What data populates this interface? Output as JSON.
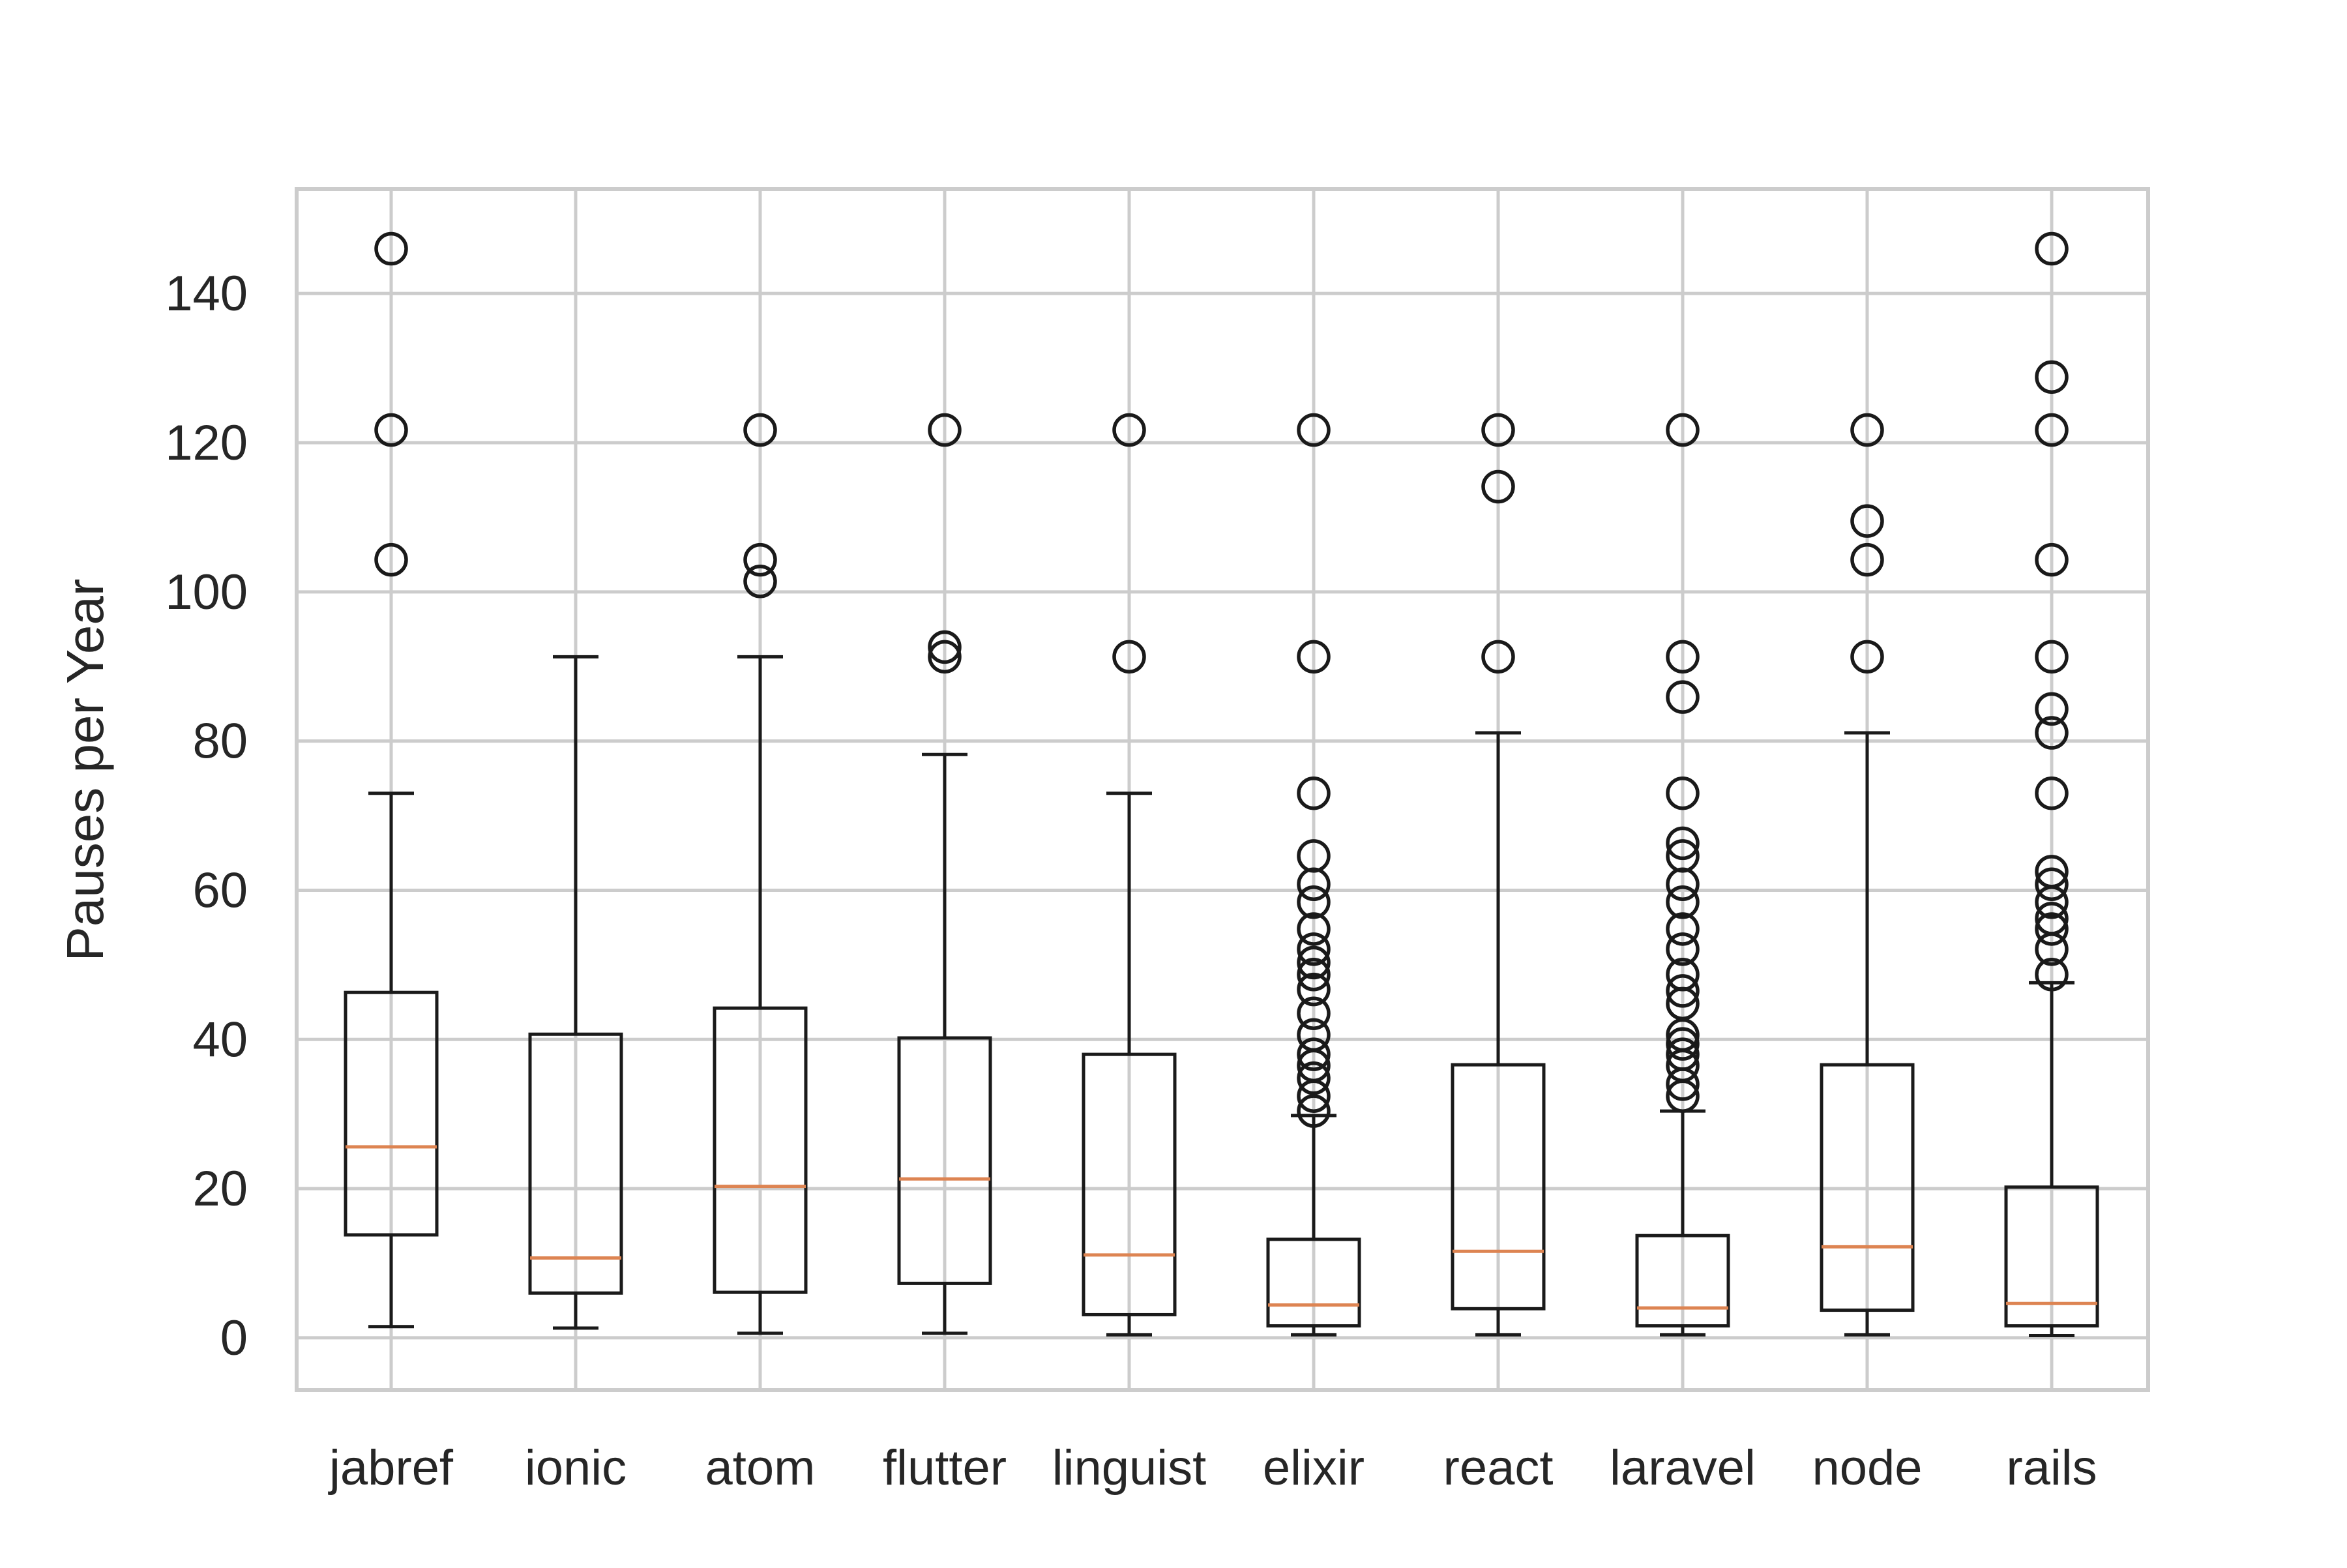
{
  "chart_data": {
    "type": "boxplot",
    "title": "",
    "xlabel": "",
    "ylabel": "Pauses per Year",
    "ylim": [
      -7,
      154
    ],
    "yticks": [
      0,
      20,
      40,
      60,
      80,
      100,
      120,
      140
    ],
    "grid": true,
    "colors": {
      "box": "#1a1a1a",
      "median": "#dd8452",
      "grid": "#cccccc",
      "frame": "#cccccc"
    },
    "categories": [
      "jabref",
      "ionic",
      "atom",
      "flutter",
      "linguist",
      "elixir",
      "react",
      "laravel",
      "node",
      "rails"
    ],
    "boxes": [
      {
        "name": "jabref",
        "whislo": 1.5,
        "q1": 13.8,
        "med": 25.6,
        "q3": 46.3,
        "whishi": 73.0,
        "fliers": [
          104.3,
          121.7,
          146.0
        ]
      },
      {
        "name": "ionic",
        "whislo": 1.3,
        "q1": 6.0,
        "med": 10.7,
        "q3": 40.7,
        "whishi": 91.3,
        "fliers": []
      },
      {
        "name": "atom",
        "whislo": 0.6,
        "q1": 6.1,
        "med": 20.3,
        "q3": 44.2,
        "whishi": 91.3,
        "fliers": [
          101.4,
          104.3,
          121.7
        ]
      },
      {
        "name": "flutter",
        "whislo": 0.6,
        "q1": 7.3,
        "med": 21.3,
        "q3": 40.2,
        "whishi": 78.2,
        "fliers": [
          91.3,
          92.6,
          121.7
        ]
      },
      {
        "name": "linguist",
        "whislo": 0.4,
        "q1": 3.1,
        "med": 11.1,
        "q3": 38.0,
        "whishi": 73.0,
        "fliers": [
          91.3,
          121.7
        ]
      },
      {
        "name": "elixir",
        "whislo": 0.4,
        "q1": 1.6,
        "med": 4.4,
        "q3": 13.2,
        "whishi": 29.8,
        "fliers": [
          30.4,
          32.4,
          34.8,
          36.5,
          38.0,
          40.6,
          43.5,
          46.7,
          48.7,
          50.3,
          52.1,
          54.8,
          58.4,
          60.8,
          64.6,
          73.0,
          91.3,
          121.7
        ]
      },
      {
        "name": "react",
        "whislo": 0.4,
        "q1": 3.9,
        "med": 11.6,
        "q3": 36.6,
        "whishi": 81.1,
        "fliers": [
          91.3,
          114.1,
          121.7
        ]
      },
      {
        "name": "laravel",
        "whislo": 0.4,
        "q1": 1.6,
        "med": 4.0,
        "q3": 13.7,
        "whishi": 30.4,
        "fliers": [
          32.4,
          34.0,
          36.5,
          38.0,
          39.4,
          40.6,
          44.8,
          46.5,
          48.7,
          52.1,
          54.8,
          58.4,
          60.8,
          64.6,
          66.3,
          73.0,
          85.9,
          91.3,
          121.7
        ]
      },
      {
        "name": "node",
        "whislo": 0.4,
        "q1": 3.7,
        "med": 12.2,
        "q3": 36.6,
        "whishi": 81.1,
        "fliers": [
          91.3,
          104.3,
          109.5,
          121.7
        ]
      },
      {
        "name": "rails",
        "whislo": 0.3,
        "q1": 1.6,
        "med": 4.6,
        "q3": 20.2,
        "whishi": 47.6,
        "fliers": [
          48.7,
          52.1,
          54.8,
          56.2,
          58.4,
          60.8,
          62.5,
          73.0,
          81.1,
          84.3,
          91.3,
          104.3,
          121.7,
          128.8,
          146.0
        ]
      }
    ]
  }
}
